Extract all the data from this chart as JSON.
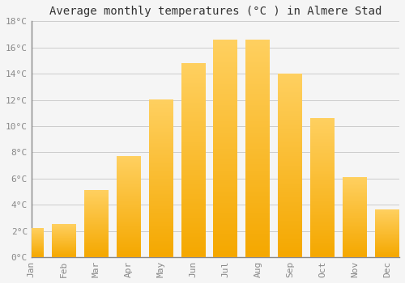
{
  "title": "Average monthly temperatures (°C ) in Almere Stad",
  "months": [
    "Jan",
    "Feb",
    "Mar",
    "Apr",
    "May",
    "Jun",
    "Jul",
    "Aug",
    "Sep",
    "Oct",
    "Nov",
    "Dec"
  ],
  "temperatures": [
    2.2,
    2.5,
    5.1,
    7.7,
    12.0,
    14.8,
    16.6,
    16.6,
    14.0,
    10.6,
    6.1,
    3.6
  ],
  "bar_color_light": "#FFD060",
  "bar_color_dark": "#F5A800",
  "background_color": "#F5F5F5",
  "grid_color": "#CCCCCC",
  "spine_color": "#888888",
  "tick_color": "#888888",
  "ylim": [
    0,
    18
  ],
  "ytick_step": 2,
  "title_fontsize": 10,
  "tick_fontsize": 8,
  "font_family": "monospace"
}
